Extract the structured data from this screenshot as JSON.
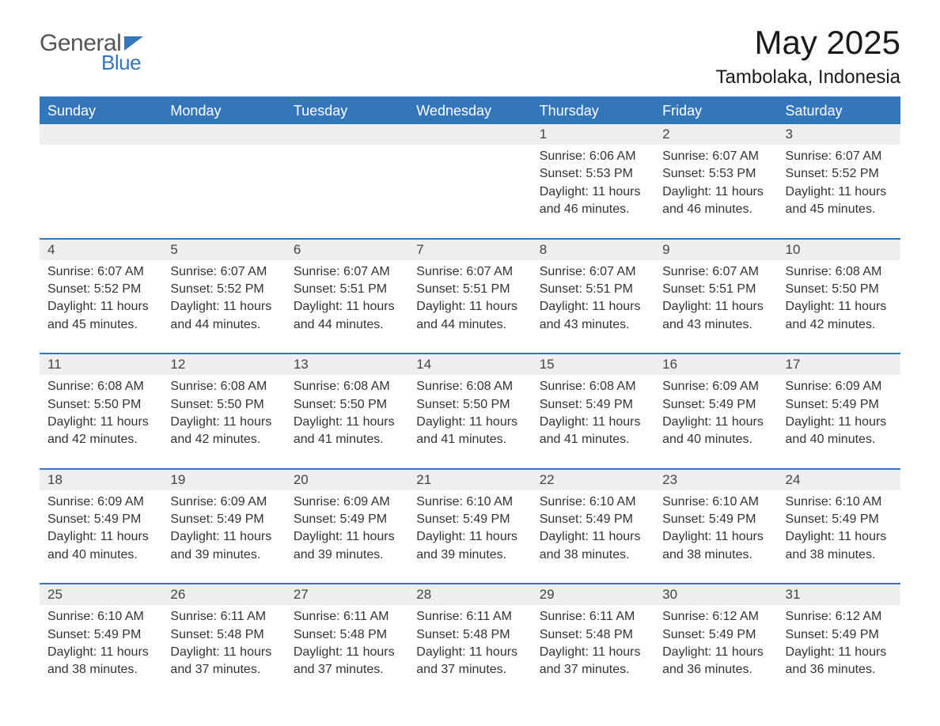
{
  "logo": {
    "text1": "General",
    "text2": "Blue"
  },
  "title": "May 2025",
  "subtitle": "Tambolaka, Indonesia",
  "colors": {
    "accent": "#3477b9",
    "header_bg": "#3477b9",
    "daynum_bg": "#eceef0",
    "text": "#333333",
    "bg": "#ffffff"
  },
  "day_header_fontsize": 18,
  "title_fontsize": 42,
  "subtitle_fontsize": 24,
  "body_fontsize": 16,
  "days_of_week": [
    "Sunday",
    "Monday",
    "Tuesday",
    "Wednesday",
    "Thursday",
    "Friday",
    "Saturday"
  ],
  "weeks": [
    [
      null,
      null,
      null,
      null,
      {
        "n": "1",
        "sunrise": "6:06 AM",
        "sunset": "5:53 PM",
        "daylight": "11 hours and 46 minutes."
      },
      {
        "n": "2",
        "sunrise": "6:07 AM",
        "sunset": "5:53 PM",
        "daylight": "11 hours and 46 minutes."
      },
      {
        "n": "3",
        "sunrise": "6:07 AM",
        "sunset": "5:52 PM",
        "daylight": "11 hours and 45 minutes."
      }
    ],
    [
      {
        "n": "4",
        "sunrise": "6:07 AM",
        "sunset": "5:52 PM",
        "daylight": "11 hours and 45 minutes."
      },
      {
        "n": "5",
        "sunrise": "6:07 AM",
        "sunset": "5:52 PM",
        "daylight": "11 hours and 44 minutes."
      },
      {
        "n": "6",
        "sunrise": "6:07 AM",
        "sunset": "5:51 PM",
        "daylight": "11 hours and 44 minutes."
      },
      {
        "n": "7",
        "sunrise": "6:07 AM",
        "sunset": "5:51 PM",
        "daylight": "11 hours and 44 minutes."
      },
      {
        "n": "8",
        "sunrise": "6:07 AM",
        "sunset": "5:51 PM",
        "daylight": "11 hours and 43 minutes."
      },
      {
        "n": "9",
        "sunrise": "6:07 AM",
        "sunset": "5:51 PM",
        "daylight": "11 hours and 43 minutes."
      },
      {
        "n": "10",
        "sunrise": "6:08 AM",
        "sunset": "5:50 PM",
        "daylight": "11 hours and 42 minutes."
      }
    ],
    [
      {
        "n": "11",
        "sunrise": "6:08 AM",
        "sunset": "5:50 PM",
        "daylight": "11 hours and 42 minutes."
      },
      {
        "n": "12",
        "sunrise": "6:08 AM",
        "sunset": "5:50 PM",
        "daylight": "11 hours and 42 minutes."
      },
      {
        "n": "13",
        "sunrise": "6:08 AM",
        "sunset": "5:50 PM",
        "daylight": "11 hours and 41 minutes."
      },
      {
        "n": "14",
        "sunrise": "6:08 AM",
        "sunset": "5:50 PM",
        "daylight": "11 hours and 41 minutes."
      },
      {
        "n": "15",
        "sunrise": "6:08 AM",
        "sunset": "5:49 PM",
        "daylight": "11 hours and 41 minutes."
      },
      {
        "n": "16",
        "sunrise": "6:09 AM",
        "sunset": "5:49 PM",
        "daylight": "11 hours and 40 minutes."
      },
      {
        "n": "17",
        "sunrise": "6:09 AM",
        "sunset": "5:49 PM",
        "daylight": "11 hours and 40 minutes."
      }
    ],
    [
      {
        "n": "18",
        "sunrise": "6:09 AM",
        "sunset": "5:49 PM",
        "daylight": "11 hours and 40 minutes."
      },
      {
        "n": "19",
        "sunrise": "6:09 AM",
        "sunset": "5:49 PM",
        "daylight": "11 hours and 39 minutes."
      },
      {
        "n": "20",
        "sunrise": "6:09 AM",
        "sunset": "5:49 PM",
        "daylight": "11 hours and 39 minutes."
      },
      {
        "n": "21",
        "sunrise": "6:10 AM",
        "sunset": "5:49 PM",
        "daylight": "11 hours and 39 minutes."
      },
      {
        "n": "22",
        "sunrise": "6:10 AM",
        "sunset": "5:49 PM",
        "daylight": "11 hours and 38 minutes."
      },
      {
        "n": "23",
        "sunrise": "6:10 AM",
        "sunset": "5:49 PM",
        "daylight": "11 hours and 38 minutes."
      },
      {
        "n": "24",
        "sunrise": "6:10 AM",
        "sunset": "5:49 PM",
        "daylight": "11 hours and 38 minutes."
      }
    ],
    [
      {
        "n": "25",
        "sunrise": "6:10 AM",
        "sunset": "5:49 PM",
        "daylight": "11 hours and 38 minutes."
      },
      {
        "n": "26",
        "sunrise": "6:11 AM",
        "sunset": "5:48 PM",
        "daylight": "11 hours and 37 minutes."
      },
      {
        "n": "27",
        "sunrise": "6:11 AM",
        "sunset": "5:48 PM",
        "daylight": "11 hours and 37 minutes."
      },
      {
        "n": "28",
        "sunrise": "6:11 AM",
        "sunset": "5:48 PM",
        "daylight": "11 hours and 37 minutes."
      },
      {
        "n": "29",
        "sunrise": "6:11 AM",
        "sunset": "5:48 PM",
        "daylight": "11 hours and 37 minutes."
      },
      {
        "n": "30",
        "sunrise": "6:12 AM",
        "sunset": "5:49 PM",
        "daylight": "11 hours and 36 minutes."
      },
      {
        "n": "31",
        "sunrise": "6:12 AM",
        "sunset": "5:49 PM",
        "daylight": "11 hours and 36 minutes."
      }
    ]
  ],
  "labels": {
    "sunrise": "Sunrise:",
    "sunset": "Sunset:",
    "daylight": "Daylight:"
  }
}
